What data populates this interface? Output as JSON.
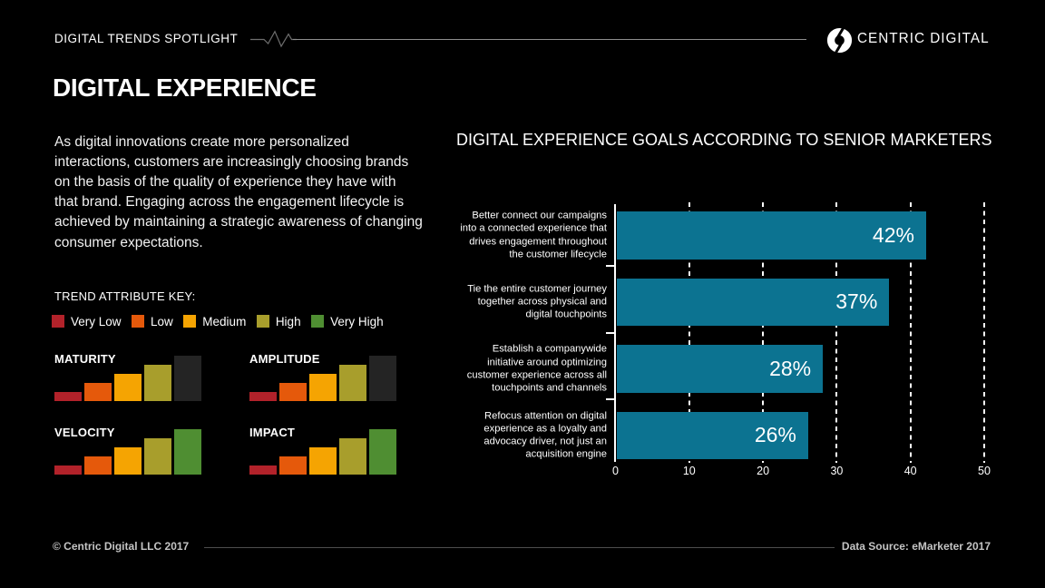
{
  "header": {
    "eyebrow": "DIGITAL TRENDS SPOTLIGHT",
    "brand": "CENTRIC DIGITAL"
  },
  "title": "DIGITAL EXPERIENCE",
  "intro_lines": [
    "As digital innovations create more personalized",
    "interactions, customers are increasingly choosing brands",
    "on the basis of the quality of experience they have with",
    "that brand. Engaging across the engagement lifecycle is",
    "achieved by maintaining a strategic awareness of changing",
    "consumer expectations."
  ],
  "trend_key": {
    "title": "TREND ATTRIBUTE KEY:",
    "levels": [
      {
        "label": "Very Low",
        "color": "#b2222a"
      },
      {
        "label": "Low",
        "color": "#e5590b"
      },
      {
        "label": "Medium",
        "color": "#f5a402"
      },
      {
        "label": "High",
        "color": "#a89e2c"
      },
      {
        "label": "Very High",
        "color": "#4f8e32"
      }
    ],
    "inactive_color": "#242424"
  },
  "attribute_charts": [
    {
      "label": "MATURITY",
      "rating": "High",
      "value": 4
    },
    {
      "label": "AMPLITUDE",
      "rating": "High",
      "value": 4
    },
    {
      "label": "VELOCITY",
      "rating": "Very High",
      "value": 5
    },
    {
      "label": "IMPACT",
      "rating": "Very High",
      "value": 5
    }
  ],
  "chart_data": {
    "type": "bar",
    "orientation": "horizontal",
    "title": "DIGITAL EXPERIENCE GOALS ACCORDING TO SENIOR MARKETERS",
    "categories": [
      [
        "Better connect our campaigns",
        "into a connected experience that",
        "drives engagement throughout",
        "the customer lifecycle"
      ],
      [
        "Tie the entire customer journey",
        "together across physical and",
        "digital touchpoints"
      ],
      [
        "Establish a companywide",
        "initiative around optimizing",
        "customer experience across all",
        "touchpoints and channels"
      ],
      [
        "Refocus attention on digital",
        "experience as a loyalty and",
        "advocacy driver, not just an",
        "acquisition engine"
      ]
    ],
    "values": [
      42,
      37,
      28,
      26
    ],
    "value_labels": [
      "42%",
      "37%",
      "28%",
      "26%"
    ],
    "xlim": [
      0,
      50
    ],
    "xticks": [
      0,
      10,
      20,
      30,
      40,
      50
    ],
    "bar_color": "#0c7391",
    "grid": "dashed-vertical",
    "legend_position": "none"
  },
  "footer": {
    "left": "© Centric Digital LLC 2017",
    "right": "Data Source: eMarketer 2017"
  }
}
